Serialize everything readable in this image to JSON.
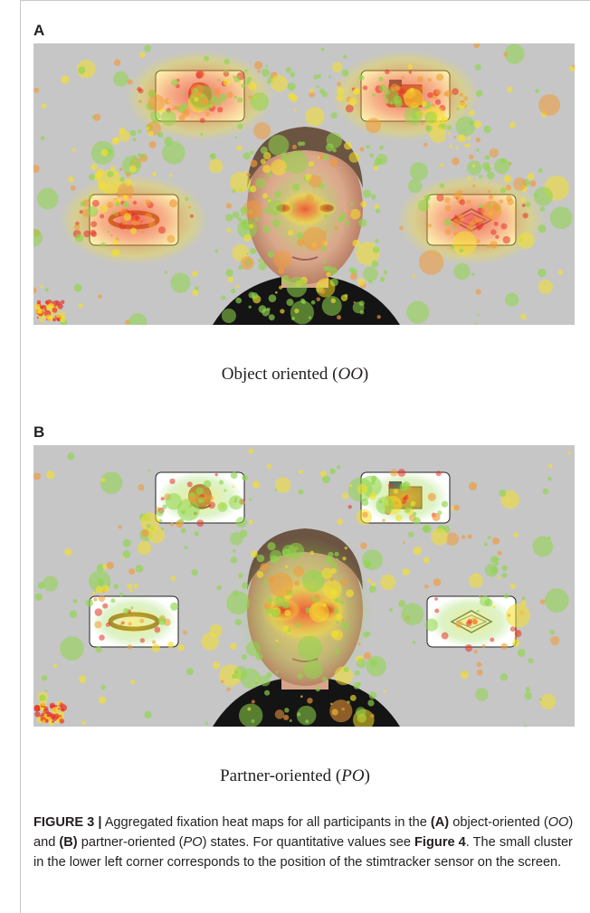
{
  "panels": [
    {
      "label": "A",
      "condition_text": "Object oriented",
      "condition_abbr": "OO"
    },
    {
      "label": "B",
      "condition_text": "Partner-oriented",
      "condition_abbr": "PO"
    }
  ],
  "caption": {
    "figure_number": "FIGURE 3 |",
    "text_1": " Aggregated fixation heat maps for all participants in the ",
    "label_a": "(A)",
    "text_2": " object-oriented (",
    "abbr_oo": "OO",
    "text_3": ") and ",
    "label_b": "(B)",
    "text_4": " partner-oriented (",
    "abbr_po": "PO",
    "text_5": ") states. For quantitative values see ",
    "figure_ref": "Figure 4",
    "text_6": ". The small cluster in the lower left corner corresponds to the position of the stimtracker sensor on the screen."
  },
  "colors": {
    "background_gray": "#c6c6c6",
    "heat_red": "#e8322a",
    "heat_yellow": "#f5e02c",
    "heat_green": "#8fd64a"
  }
}
